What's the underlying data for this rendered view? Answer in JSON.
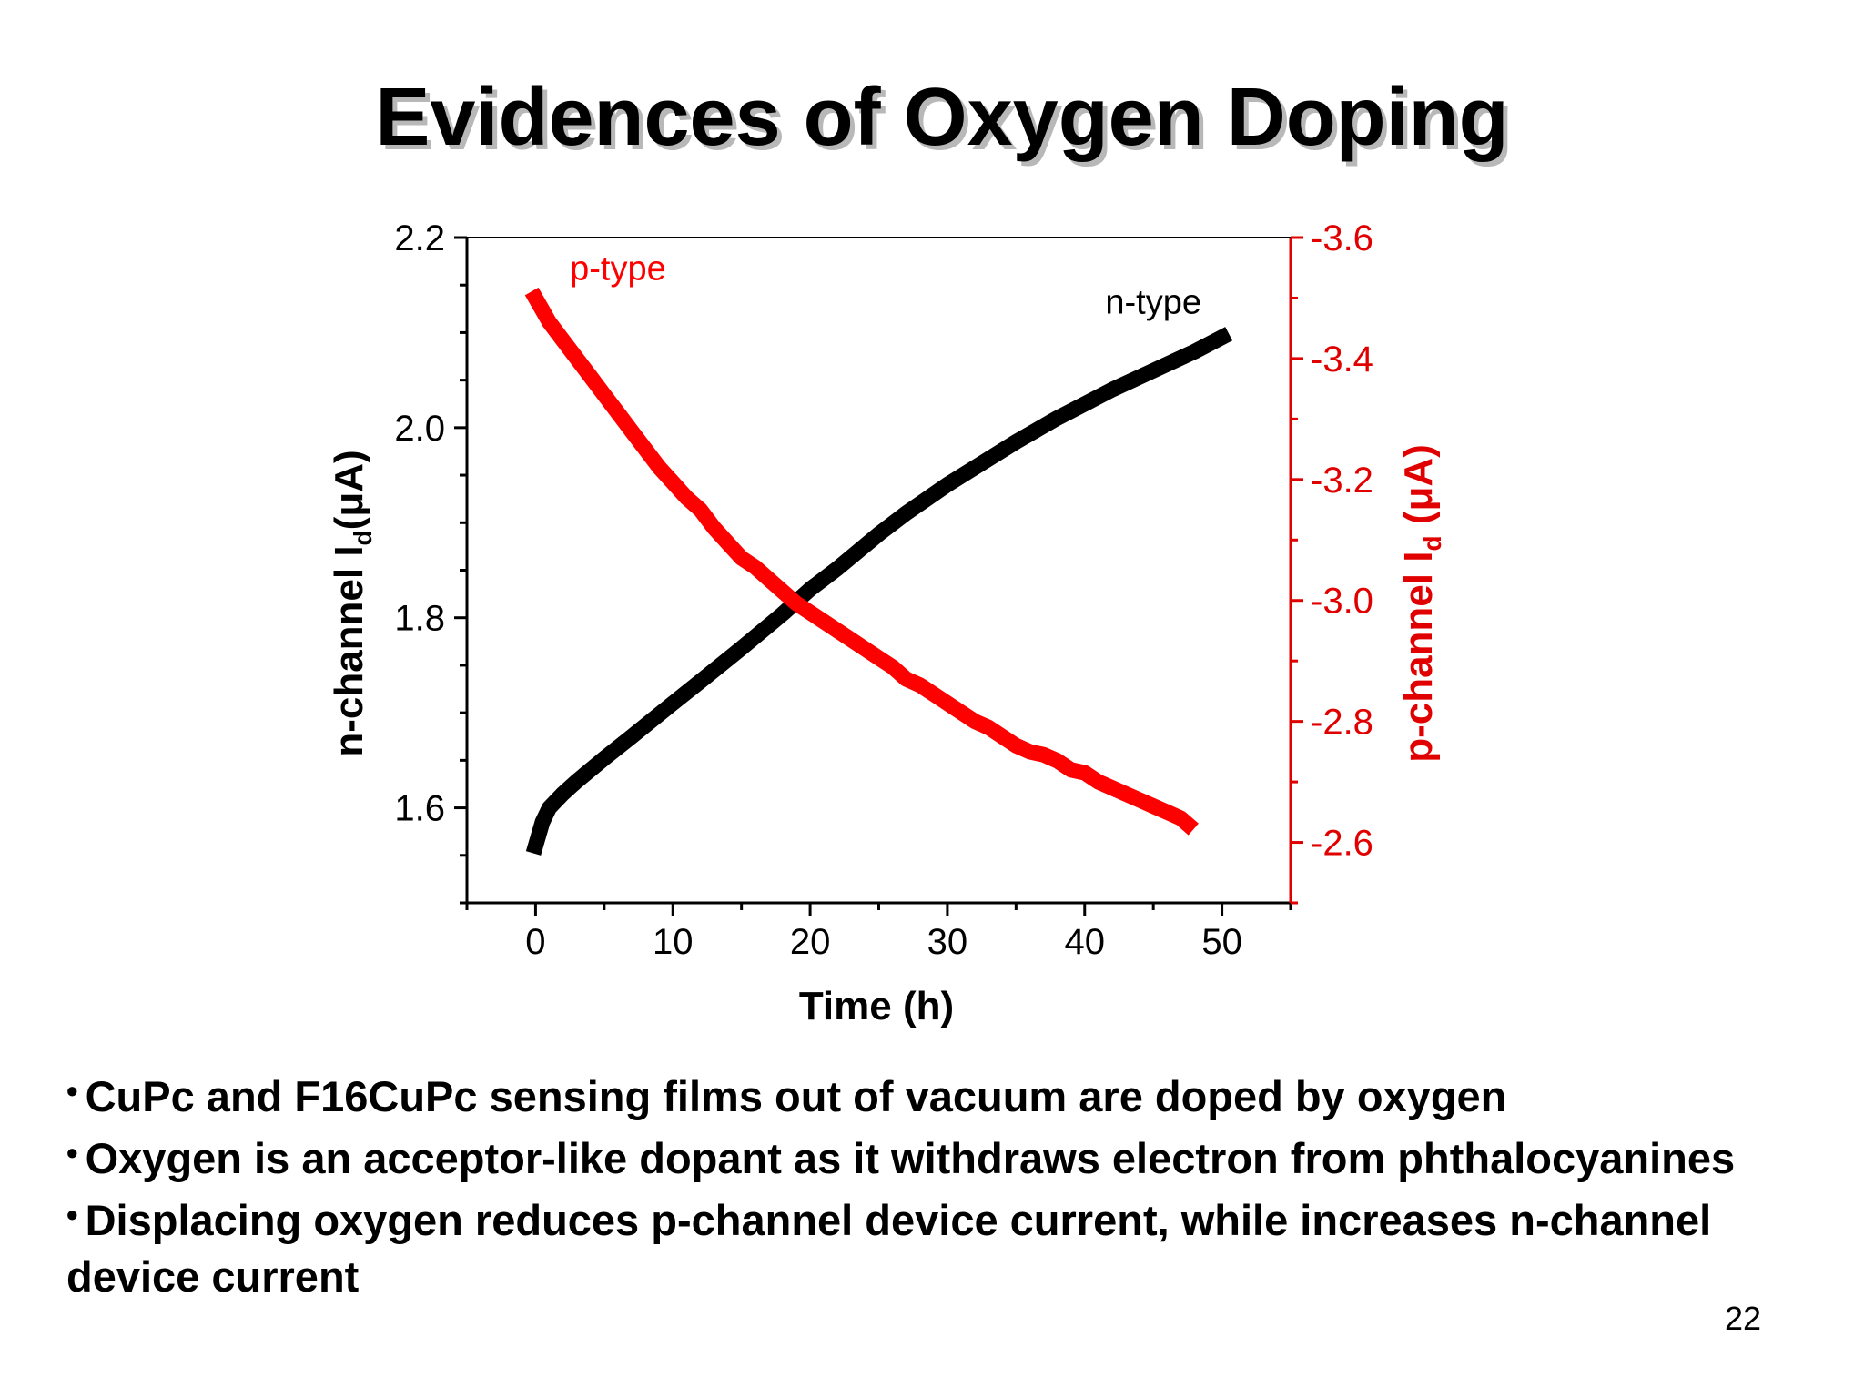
{
  "slide": {
    "title": "Evidences of Oxygen Doping",
    "page_number": "22"
  },
  "bullets": [
    {
      "text": "CuPc and F16CuPc sensing films out of vacuum are doped by oxygen"
    },
    {
      "text": "Oxygen is an acceptor-like dopant as it withdraws electron from phthalocyanines"
    },
    {
      "text": "Displacing oxygen reduces p-channel device current, while increases n-channel device current"
    }
  ],
  "chart_data": {
    "type": "line",
    "title": "",
    "xlabel": "Time (h)",
    "ylabel_left": "n-channel Id(μA)",
    "ylabel_left_parts": {
      "main": "n-channel I",
      "sub": "d",
      "rest": "(μA)"
    },
    "ylabel_right": "p-channel Id (μA)",
    "ylabel_right_parts": {
      "main": "p-channel I",
      "sub": "d",
      "rest": " (μA)"
    },
    "xlim": [
      -5,
      55
    ],
    "ylim_left": [
      1.5,
      2.2
    ],
    "ylim_right": [
      -2.5,
      -3.6
    ],
    "xticks": [
      0,
      10,
      20,
      30,
      40,
      50
    ],
    "xtick_labels": [
      "0",
      "10",
      "20",
      "30",
      "40",
      "50"
    ],
    "yticks_left": [
      1.6,
      1.8,
      2.0,
      2.2
    ],
    "ytick_labels_left": [
      "1.6",
      "1.8",
      "2.0",
      "2.2"
    ],
    "yticks_right": [
      -2.6,
      -2.8,
      -3.0,
      -3.2,
      -3.4,
      -3.6
    ],
    "ytick_labels_right": [
      "-2.6",
      "-2.8",
      "-3.0",
      "-3.2",
      "-3.4",
      "-3.6"
    ],
    "colors": {
      "n_series": "#000000",
      "p_series": "#ff0000",
      "right_axis": "#e00000"
    },
    "series": [
      {
        "name": "n-type",
        "axis": "left",
        "color": "#000000",
        "x": [
          0,
          0.5,
          1,
          2,
          3,
          5,
          7,
          10,
          12,
          15,
          18,
          20,
          22,
          25,
          27,
          30,
          32,
          35,
          38,
          40,
          42,
          45,
          48,
          50
        ],
        "y": [
          1.56,
          1.585,
          1.6,
          1.615,
          1.628,
          1.652,
          1.675,
          1.71,
          1.733,
          1.768,
          1.804,
          1.83,
          1.852,
          1.888,
          1.91,
          1.94,
          1.958,
          1.985,
          2.01,
          2.025,
          2.04,
          2.06,
          2.08,
          2.095
        ]
      },
      {
        "name": "p-type",
        "axis": "right",
        "color": "#ff0000",
        "x": [
          0,
          0.5,
          1,
          2,
          3,
          4,
          5,
          6,
          7,
          8,
          9,
          10,
          11,
          12,
          13,
          14,
          15,
          16,
          17,
          18,
          19,
          20,
          21,
          22,
          23,
          24,
          25,
          26,
          27,
          28,
          29,
          30,
          31,
          32,
          33,
          34,
          35,
          36,
          37,
          38,
          39,
          40,
          41,
          42,
          43,
          44,
          45,
          46,
          47,
          47.5
        ],
        "y": [
          -3.5,
          -3.48,
          -3.46,
          -3.43,
          -3.4,
          -3.37,
          -3.34,
          -3.31,
          -3.28,
          -3.25,
          -3.22,
          -3.195,
          -3.17,
          -3.15,
          -3.12,
          -3.095,
          -3.07,
          -3.055,
          -3.035,
          -3.015,
          -2.995,
          -2.98,
          -2.965,
          -2.95,
          -2.935,
          -2.92,
          -2.905,
          -2.89,
          -2.87,
          -2.86,
          -2.845,
          -2.83,
          -2.815,
          -2.8,
          -2.79,
          -2.775,
          -2.76,
          -2.75,
          -2.745,
          -2.735,
          -2.72,
          -2.715,
          -2.7,
          -2.69,
          -2.68,
          -2.67,
          -2.66,
          -2.65,
          -2.64,
          -2.63
        ]
      }
    ],
    "annotations": [
      {
        "text": "p-type",
        "x": 2.5,
        "y_right": -3.53,
        "color": "#ff0000"
      },
      {
        "text": "n-type",
        "x": 41.5,
        "y_left": 2.12,
        "color": "#000000"
      }
    ]
  }
}
